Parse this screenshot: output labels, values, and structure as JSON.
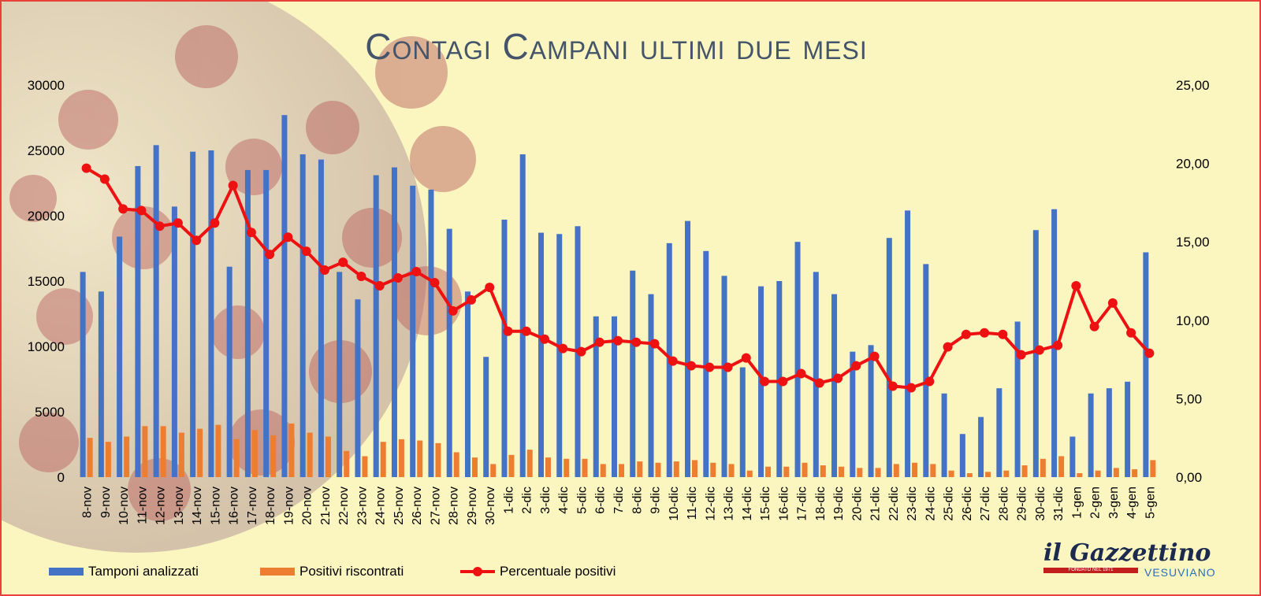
{
  "title": "Contagi Campani ultimi due mesi",
  "colors": {
    "background": "#fbf5c0",
    "border": "#e8403a",
    "tamponi": "#4472c4",
    "positivi": "#ed7d31",
    "percentuale": "#ee1111",
    "title": "#44546a"
  },
  "legend": {
    "tamponi": "Tamponi analizzati",
    "positivi": "Positivi riscontrati",
    "percentuale": "Percentuale positivi"
  },
  "logo": {
    "name": "il Gazzettino",
    "sub": "VESUVIANO",
    "tag": "FONDATO NEL 1971"
  },
  "chart_data": {
    "type": "bar",
    "title": "Contagi Campani ultimi due mesi",
    "categories": [
      "8-nov",
      "9-nov",
      "10-nov",
      "11-nov",
      "12-nov",
      "13-nov",
      "14-nov",
      "15-nov",
      "16-nov",
      "17-nov",
      "18-nov",
      "19-nov",
      "20-nov",
      "21-nov",
      "22-nov",
      "23-nov",
      "24-nov",
      "25-nov",
      "26-nov",
      "27-nov",
      "28-nov",
      "29-nov",
      "30-nov",
      "1-dic",
      "2-dic",
      "3-dic",
      "4-dic",
      "5-dic",
      "6-dic",
      "7-dic",
      "8-dic",
      "9-dic",
      "10-dic",
      "11-dic",
      "12-dic",
      "13-dic",
      "14-dic",
      "15-dic",
      "16-dic",
      "17-dic",
      "18-dic",
      "19-dic",
      "20-dic",
      "21-dic",
      "22-dic",
      "23-dic",
      "24-dic",
      "25-dic",
      "26-dic",
      "27-dic",
      "28-dic",
      "29-dic",
      "30-dic",
      "31-dic",
      "1-gen",
      "2-gen",
      "3-gen",
      "4-gen",
      "5-gen"
    ],
    "left_axis": {
      "ylim": [
        0,
        30000
      ],
      "ticks": [
        "0",
        "5000",
        "10000",
        "15000",
        "20000",
        "25000",
        "30000"
      ]
    },
    "right_axis": {
      "ylim": [
        0,
        25
      ],
      "ticks": [
        "0,00",
        "5,00",
        "10,00",
        "15,00",
        "20,00",
        "25,00"
      ]
    },
    "grid": false,
    "legend_position": "bottom",
    "series": [
      {
        "name": "Tamponi analizzati",
        "type": "bar",
        "axis": "left",
        "values": [
          15700,
          14200,
          18400,
          23800,
          25400,
          20700,
          24900,
          25000,
          16100,
          23500,
          23500,
          27700,
          24700,
          24300,
          15700,
          13600,
          23100,
          23700,
          22300,
          22000,
          19000,
          14200,
          9200,
          19700,
          24700,
          18700,
          18600,
          19200,
          12300,
          12300,
          15800,
          14000,
          17900,
          19600,
          17300,
          15400,
          8400,
          14600,
          15000,
          18000,
          15700,
          14000,
          9600,
          10100,
          18300,
          20400,
          16300,
          6400,
          3300,
          4600,
          6800,
          11900,
          18900,
          20500,
          3100,
          6400,
          6800,
          7300,
          17200
        ]
      },
      {
        "name": "Positivi riscontrati",
        "type": "bar",
        "axis": "left",
        "values": [
          3000,
          2700,
          3100,
          3900,
          3900,
          3400,
          3700,
          4000,
          2900,
          3600,
          3200,
          4100,
          3400,
          3100,
          2000,
          1600,
          2700,
          2900,
          2800,
          2600,
          1900,
          1500,
          1000,
          1700,
          2100,
          1500,
          1400,
          1400,
          1000,
          1000,
          1200,
          1100,
          1200,
          1300,
          1100,
          1000,
          500,
          800,
          800,
          1100,
          900,
          800,
          700,
          700,
          1000,
          1100,
          1000,
          500,
          300,
          400,
          500,
          900,
          1400,
          1600,
          300,
          500,
          700,
          600,
          1300
        ]
      },
      {
        "name": "Percentuale positivi",
        "type": "line",
        "axis": "right",
        "values": [
          19.7,
          19.0,
          17.1,
          17.0,
          16.0,
          16.2,
          15.1,
          16.2,
          18.6,
          15.6,
          14.2,
          15.3,
          14.4,
          13.2,
          13.7,
          12.8,
          12.2,
          12.7,
          13.1,
          12.4,
          10.6,
          11.3,
          12.1,
          9.3,
          9.3,
          8.8,
          8.2,
          8.0,
          8.6,
          8.7,
          8.6,
          8.5,
          7.4,
          7.1,
          7.0,
          7.0,
          7.6,
          6.1,
          6.1,
          6.6,
          6.0,
          6.3,
          7.1,
          7.7,
          5.8,
          5.7,
          6.1,
          8.3,
          9.1,
          9.2,
          9.1,
          7.8,
          8.1,
          8.4,
          12.2,
          9.6,
          11.1,
          9.2,
          7.9
        ]
      }
    ]
  }
}
